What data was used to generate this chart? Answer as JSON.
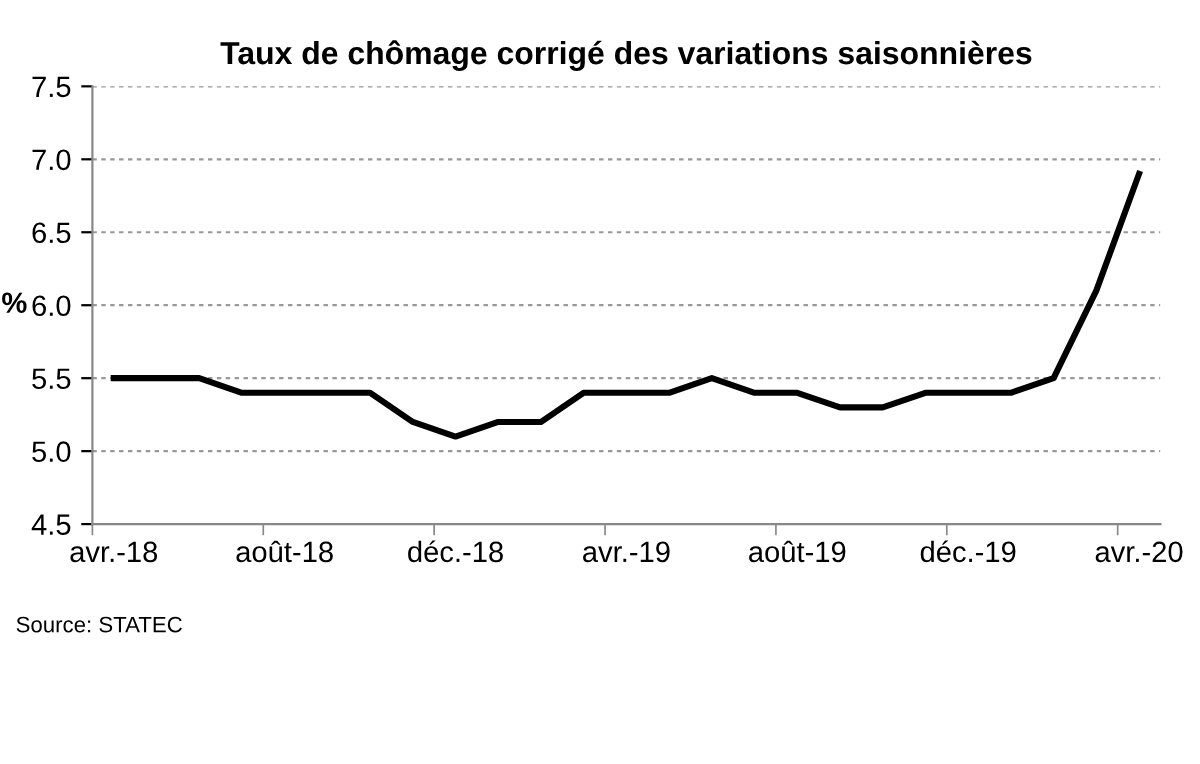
{
  "chart_data": {
    "type": "line",
    "title": "Taux de chômage corrigé des variations saisonnières",
    "ylabel": "%",
    "categories": [
      "avr.-18",
      null,
      null,
      null,
      "août-18",
      null,
      null,
      null,
      "déc.-18",
      null,
      null,
      null,
      "avr.-19",
      null,
      null,
      null,
      "août-19",
      null,
      null,
      null,
      "déc.-19",
      null,
      null,
      null,
      "avr.-20"
    ],
    "series": [
      {
        "color": "#000000",
        "values": [
          5.5,
          5.5,
          5.5,
          5.4,
          5.4,
          5.4,
          5.4,
          5.2,
          5.1,
          5.2,
          5.2,
          5.4,
          5.4,
          5.4,
          5.5,
          5.4,
          5.4,
          5.3,
          5.3,
          5.4,
          5.4,
          5.4,
          5.5,
          6.1,
          6.9
        ]
      }
    ],
    "ylim": [
      4.5,
      7.5
    ],
    "yticks": [
      4.5,
      {
        "value": 5,
        "label": "5.0"
      },
      5.5,
      {
        "value": 6,
        "label": "6.0"
      },
      6.5,
      {
        "value": 7,
        "label": "7.0"
      },
      7.5
    ],
    "grid": "y",
    "legend": false,
    "marker": "none",
    "line_style": "solid",
    "annotations": [
      "Source: STATEC"
    ]
  }
}
